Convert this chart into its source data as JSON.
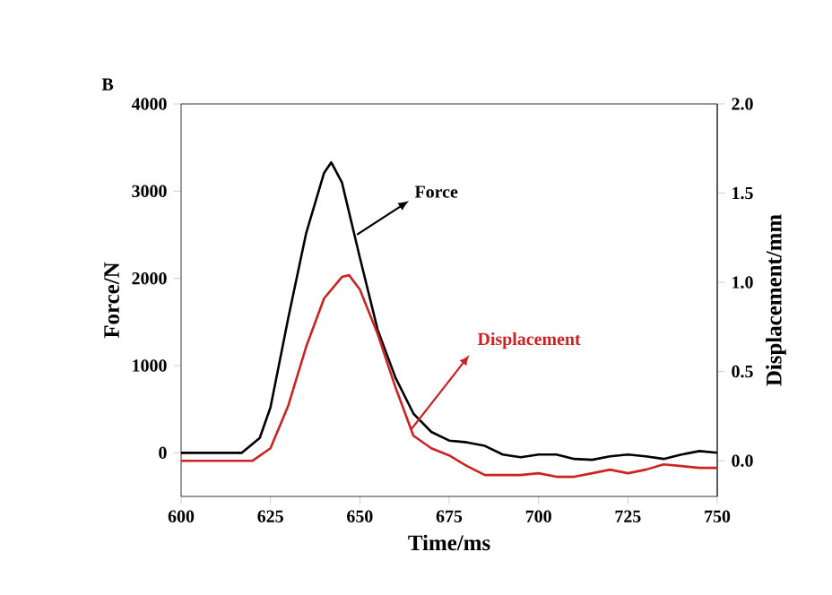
{
  "chart_data": {
    "type": "line",
    "xlabel": "Time/ms",
    "ylabel": "Force/N",
    "y2label": "Displacement/mm",
    "xlim": [
      600,
      750
    ],
    "xticks": [
      600,
      625,
      650,
      675,
      700,
      725,
      750
    ],
    "ylim": [
      -500,
      4000
    ],
    "yticks": [
      0,
      1000,
      2000,
      3000,
      4000
    ],
    "y2lim": [
      -0.2,
      2.0
    ],
    "y2ticks": [
      {
        "value": 0,
        "label": "0.0"
      },
      {
        "value": 0.5,
        "label": "0.5"
      },
      {
        "value": 1,
        "label": "1.0"
      },
      {
        "value": 1.5,
        "label": "1.5"
      },
      {
        "value": 2,
        "label": "2.0"
      }
    ],
    "grid": false,
    "marker": "none",
    "line_style": "solid",
    "annotations": [
      "B",
      "Force",
      "Displacement"
    ],
    "series": [
      {
        "color": "#000000",
        "x": [
          600,
          617,
          622,
          625,
          630,
          635,
          640,
          642,
          645,
          650,
          655,
          660,
          665,
          670,
          675,
          680,
          685,
          690,
          695,
          700,
          705,
          710,
          715,
          720,
          725,
          730,
          735,
          740,
          745,
          750
        ],
        "values": [
          0,
          0,
          170,
          520,
          1550,
          2520,
          3210,
          3330,
          3100,
          2240,
          1410,
          860,
          450,
          240,
          140,
          120,
          80,
          -20,
          -50,
          -20,
          -20,
          -70,
          -80,
          -40,
          -20,
          -40,
          -70,
          -20,
          20,
          0
        ]
      },
      {
        "color": "#cc2222",
        "axis": "y2",
        "x": [
          600,
          620,
          625,
          630,
          635,
          640,
          645,
          647,
          650,
          655,
          660,
          665,
          670,
          675,
          680,
          685,
          690,
          695,
          700,
          705,
          710,
          715,
          720,
          725,
          730,
          735,
          740,
          745,
          750
        ],
        "values": [
          0.0,
          0.0,
          0.07,
          0.31,
          0.64,
          0.91,
          1.03,
          1.04,
          0.96,
          0.71,
          0.41,
          0.14,
          0.07,
          0.03,
          -0.03,
          -0.08,
          -0.08,
          -0.08,
          -0.07,
          -0.09,
          -0.09,
          -0.07,
          -0.05,
          -0.07,
          -0.05,
          -0.02,
          -0.03,
          -0.04,
          -0.04
        ]
      }
    ]
  }
}
